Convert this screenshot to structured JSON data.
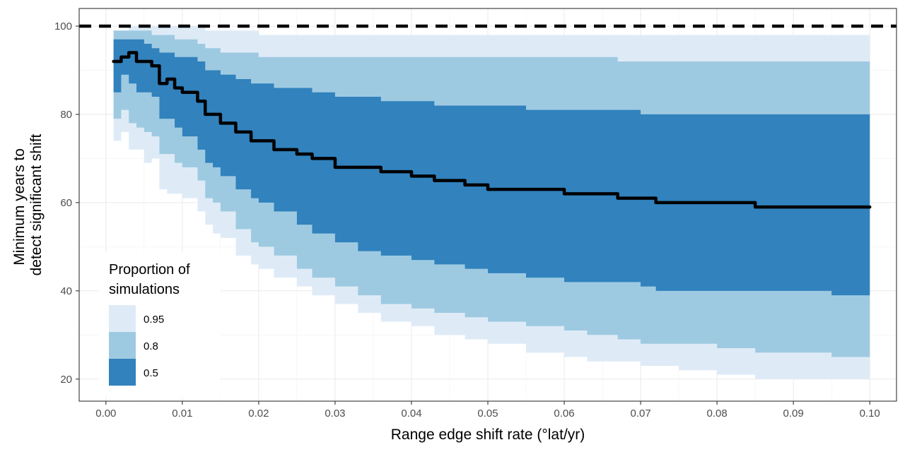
{
  "chart_data": {
    "type": "area",
    "xlabel": "Range edge shift rate (°lat/yr)",
    "ylabel_lines": [
      "Minimum years to",
      "detect significant shift"
    ],
    "xlim": [
      -0.0035,
      0.1035
    ],
    "ylim": [
      15,
      104
    ],
    "x_ticks": [
      0.0,
      0.01,
      0.02,
      0.03,
      0.04,
      0.05,
      0.06,
      0.07,
      0.08,
      0.09,
      0.1
    ],
    "x_tick_labels": [
      "0.00",
      "0.01",
      "0.02",
      "0.03",
      "0.04",
      "0.05",
      "0.06",
      "0.07",
      "0.08",
      "0.09",
      "0.10"
    ],
    "y_ticks": [
      20,
      40,
      60,
      80,
      100
    ],
    "y_tick_labels": [
      "20",
      "40",
      "60",
      "80",
      "100"
    ],
    "grid": true,
    "reference_line": {
      "y": 100,
      "style": "dashed",
      "color": "#000000"
    },
    "legend": {
      "title_lines": [
        "Proportion of",
        "simulations"
      ],
      "position": "bottom-left",
      "entries": [
        {
          "label": "0.95",
          "color": "#DEEBF7"
        },
        {
          "label": "0.8",
          "color": "#9ECAE1"
        },
        {
          "label": "0.5",
          "color": "#3182BD"
        }
      ]
    },
    "x": [
      0.001,
      0.002,
      0.003,
      0.004,
      0.005,
      0.006,
      0.007,
      0.008,
      0.009,
      0.01,
      0.012,
      0.013,
      0.014,
      0.015,
      0.017,
      0.019,
      0.02,
      0.022,
      0.025,
      0.027,
      0.03,
      0.033,
      0.036,
      0.04,
      0.043,
      0.047,
      0.05,
      0.055,
      0.06,
      0.063,
      0.067,
      0.07,
      0.072,
      0.075,
      0.08,
      0.084,
      0.085,
      0.09,
      0.095,
      0.1
    ],
    "bands": [
      {
        "name": "0.95",
        "color": "#DEEBF7",
        "upper": [
          99,
          99,
          100,
          100,
          100,
          100,
          100,
          100,
          100,
          100,
          100,
          99,
          99,
          99,
          99,
          99,
          98,
          98,
          98,
          98,
          98,
          98,
          98,
          98,
          98,
          98,
          98,
          98,
          98,
          98,
          98,
          98,
          98,
          98,
          98,
          98,
          98,
          98,
          98,
          98
        ],
        "lower": [
          74,
          76,
          72,
          72,
          69,
          70,
          63,
          62,
          62,
          61,
          58,
          55,
          53,
          52,
          48,
          46,
          45,
          43,
          41,
          39,
          37,
          35,
          33,
          32,
          30,
          29,
          28,
          26,
          25,
          24,
          24,
          23,
          23,
          22,
          21,
          21,
          20,
          20,
          20,
          19
        ]
      },
      {
        "name": "0.8",
        "color": "#9ECAE1",
        "upper": [
          99,
          99,
          99,
          99,
          99,
          98,
          98,
          98,
          97,
          97,
          96,
          95,
          95,
          94,
          94,
          94,
          93,
          93,
          93,
          93,
          93,
          93,
          93,
          93,
          93,
          93,
          93,
          93,
          93,
          93,
          92,
          92,
          92,
          92,
          92,
          92,
          92,
          92,
          92,
          92
        ],
        "lower": [
          79,
          81,
          78,
          77,
          76,
          75,
          71,
          71,
          69,
          68,
          65,
          61,
          60,
          58,
          54,
          51,
          50,
          48,
          45,
          43,
          41,
          39,
          37,
          36,
          35,
          34,
          33,
          32,
          31,
          30,
          29,
          28,
          28,
          28,
          27,
          27,
          26,
          26,
          25,
          25
        ]
      },
      {
        "name": "0.5",
        "color": "#3182BD",
        "upper": [
          97,
          97,
          97,
          97,
          96,
          95,
          94,
          94,
          93,
          93,
          92,
          90,
          90,
          89,
          88,
          87,
          87,
          86,
          86,
          85,
          84,
          84,
          83,
          83,
          82,
          82,
          82,
          81,
          81,
          81,
          81,
          80,
          80,
          80,
          80,
          80,
          80,
          80,
          80,
          80
        ],
        "lower": [
          85,
          89,
          87,
          85,
          85,
          84,
          79,
          79,
          77,
          75,
          72,
          69,
          68,
          66,
          63,
          61,
          60,
          58,
          55,
          53,
          51,
          49,
          48,
          47,
          46,
          45,
          44,
          43,
          42,
          42,
          42,
          41,
          40,
          40,
          40,
          40,
          40,
          40,
          39,
          38
        ]
      }
    ],
    "series": [
      {
        "type": "line",
        "color": "#000000",
        "y": [
          92,
          93,
          94,
          92,
          92,
          91,
          87,
          88,
          86,
          85,
          83,
          80,
          80,
          78,
          76,
          74,
          74,
          72,
          71,
          70,
          68,
          68,
          67,
          66,
          65,
          64,
          63,
          63,
          62,
          62,
          61,
          61,
          60,
          60,
          60,
          60,
          59,
          59,
          59,
          59
        ]
      }
    ]
  }
}
